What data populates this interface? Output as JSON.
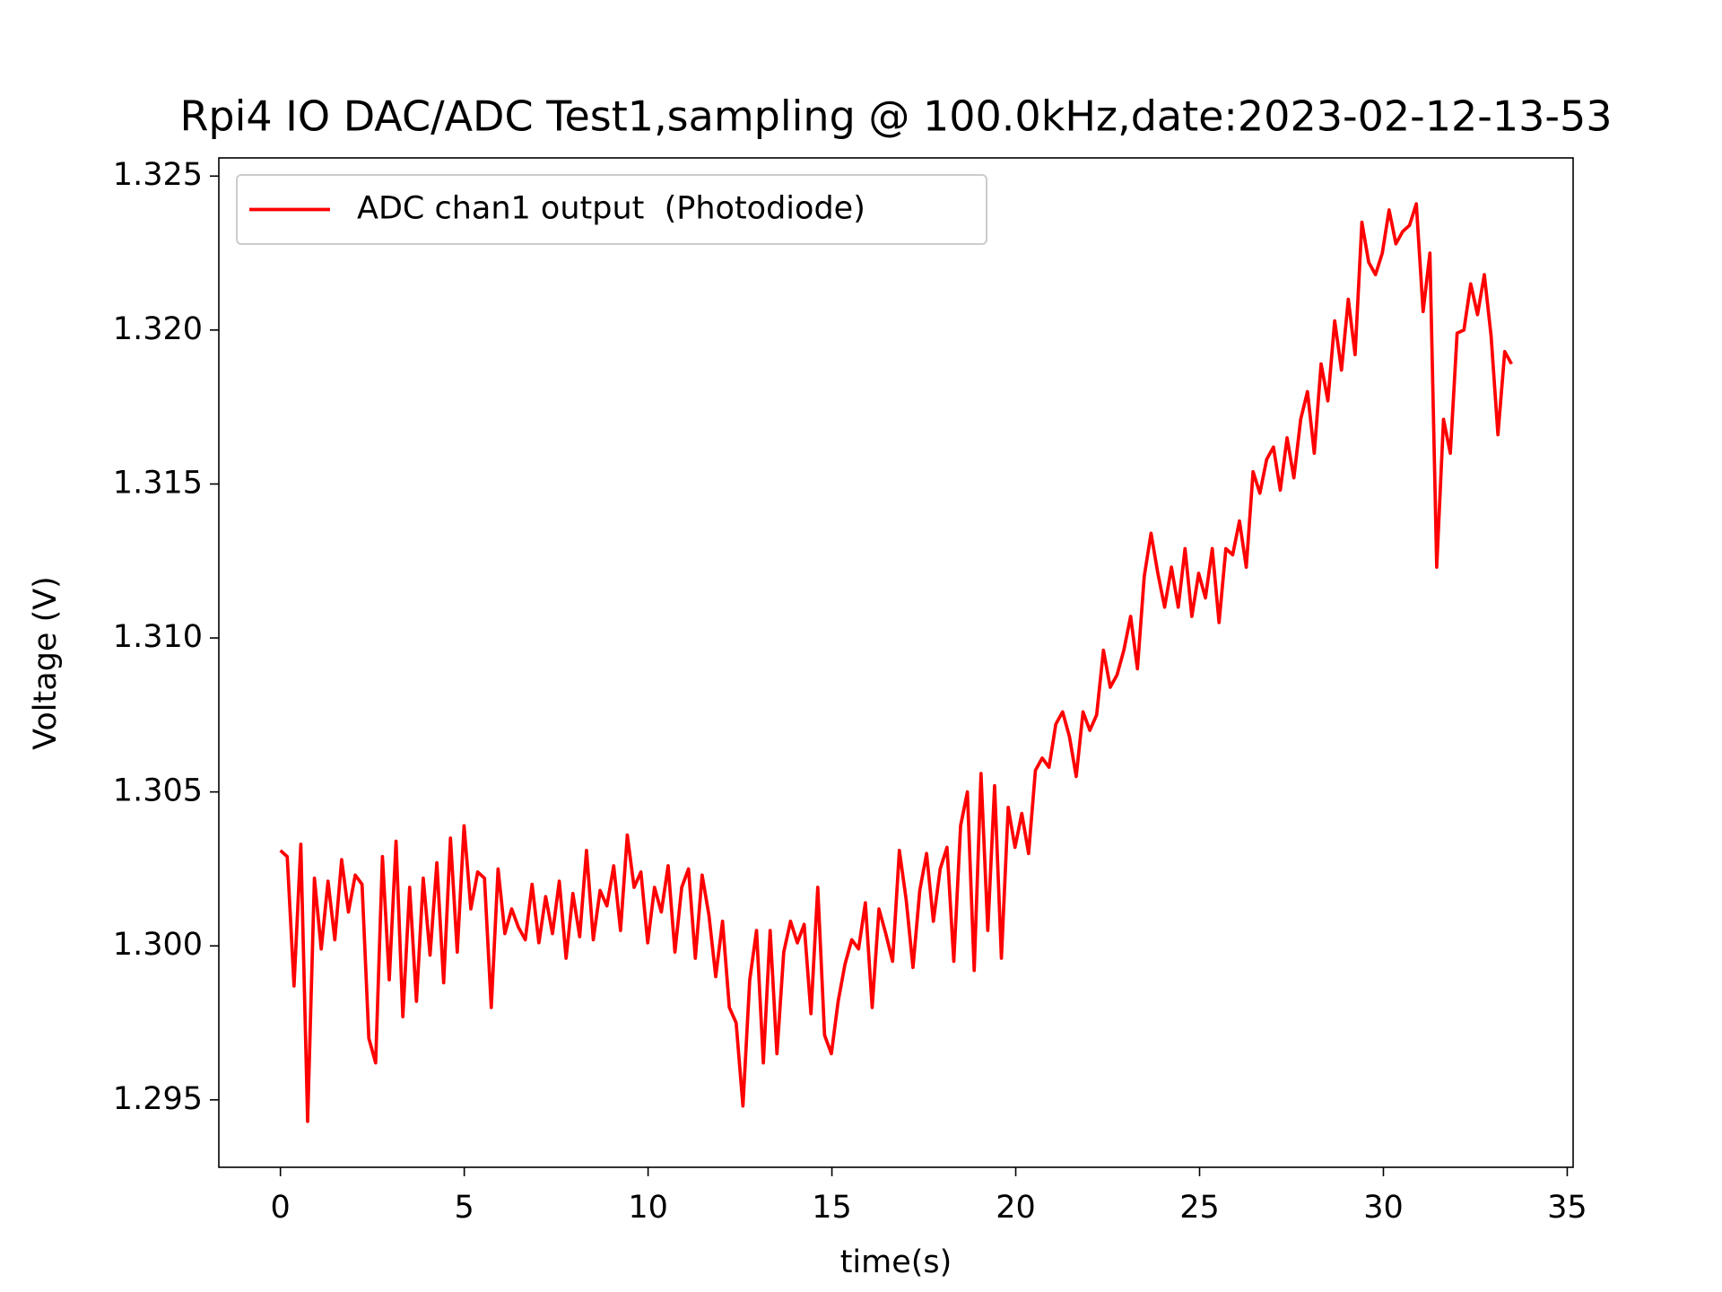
{
  "chart_data": {
    "type": "line",
    "title": "Rpi4 IO DAC/ADC Test1,sampling @ 100.0kHz,date:2023-02-12-13-53",
    "xlabel": "time(s)",
    "ylabel": "Voltage (V)",
    "legend": "upper left",
    "xlim": [
      -1.675,
      35.16
    ],
    "ylim": [
      1.29281,
      1.32559
    ],
    "xticks": [
      0,
      5,
      10,
      15,
      20,
      25,
      30,
      35
    ],
    "yticks": [
      1.295,
      {
        "value": 1.3,
        "label": "1.300"
      },
      1.305,
      {
        "value": 1.31,
        "label": "1.310"
      },
      1.315,
      {
        "value": 1.32,
        "label": "1.320"
      },
      1.325
    ],
    "x": [
      0,
      0.185,
      0.37,
      0.555,
      0.74,
      0.925,
      1.11,
      1.295,
      1.48,
      1.665,
      1.85,
      2.035,
      2.22,
      2.405,
      2.59,
      2.775,
      2.96,
      3.145,
      3.33,
      3.515,
      3.7,
      3.885,
      4.07,
      4.255,
      4.44,
      4.625,
      4.81,
      4.995,
      5.18,
      5.365,
      5.55,
      5.735,
      5.92,
      6.105,
      6.29,
      6.475,
      6.66,
      6.845,
      7.03,
      7.215,
      7.4,
      7.585,
      7.77,
      7.955,
      8.14,
      8.325,
      8.51,
      8.695,
      8.88,
      9.065,
      9.25,
      9.435,
      9.62,
      9.805,
      9.99,
      10.175,
      10.36,
      10.545,
      10.73,
      10.915,
      11.1,
      11.285,
      11.47,
      11.655,
      11.84,
      12.025,
      12.21,
      12.395,
      12.58,
      12.765,
      12.95,
      13.135,
      13.32,
      13.505,
      13.69,
      13.875,
      14.06,
      14.245,
      14.43,
      14.615,
      14.8,
      14.985,
      15.17,
      15.355,
      15.54,
      15.725,
      15.91,
      16.095,
      16.28,
      16.465,
      16.65,
      16.835,
      17.02,
      17.205,
      17.39,
      17.575,
      17.76,
      17.945,
      18.13,
      18.315,
      18.5,
      18.685,
      18.87,
      19.055,
      19.24,
      19.425,
      19.61,
      19.795,
      19.98,
      20.165,
      20.35,
      20.535,
      20.72,
      20.905,
      21.09,
      21.275,
      21.46,
      21.645,
      21.83,
      22.015,
      22.2,
      22.385,
      22.57,
      22.755,
      22.94,
      23.125,
      23.31,
      23.495,
      23.68,
      23.865,
      24.05,
      24.235,
      24.42,
      24.605,
      24.79,
      24.975,
      25.16,
      25.345,
      25.53,
      25.715,
      25.9,
      26.085,
      26.27,
      26.455,
      26.64,
      26.825,
      27.01,
      27.195,
      27.38,
      27.565,
      27.75,
      27.935,
      28.12,
      28.305,
      28.49,
      28.675,
      28.86,
      29.045,
      29.23,
      29.415,
      29.6,
      29.785,
      29.97,
      30.155,
      30.34,
      30.525,
      30.71,
      30.895,
      31.08,
      31.265,
      31.45,
      31.635,
      31.82,
      32.005,
      32.19,
      32.375,
      32.56,
      32.745,
      32.93,
      33.115,
      33.3,
      33.485
    ],
    "series": [
      {
        "name": "ADC chan1 output  (Photodiode)",
        "color": "#ff0000",
        "values": [
          1.3031,
          1.3029,
          1.2987,
          1.3033,
          1.2943,
          1.3022,
          1.2999,
          1.3021,
          1.3002,
          1.3028,
          1.3011,
          1.3023,
          1.302,
          1.297,
          1.2962,
          1.3029,
          1.2989,
          1.3034,
          1.2977,
          1.3019,
          1.2982,
          1.3022,
          1.2997,
          1.3027,
          1.2988,
          1.3035,
          1.2998,
          1.3039,
          1.3012,
          1.3024,
          1.3022,
          1.298,
          1.3025,
          1.3004,
          1.3012,
          1.3006,
          1.3002,
          1.302,
          1.3001,
          1.3016,
          1.3004,
          1.3021,
          1.2996,
          1.3017,
          1.3003,
          1.3031,
          1.3002,
          1.3018,
          1.3013,
          1.3026,
          1.3005,
          1.3036,
          1.3019,
          1.3024,
          1.3001,
          1.3019,
          1.3011,
          1.3026,
          1.2998,
          1.3019,
          1.3025,
          1.2996,
          1.3023,
          1.301,
          1.299,
          1.3008,
          1.298,
          1.2975,
          1.2948,
          1.2989,
          1.3005,
          1.2962,
          1.3005,
          1.2965,
          1.2998,
          1.3008,
          1.3001,
          1.3007,
          1.2978,
          1.3019,
          1.2971,
          1.2965,
          1.2982,
          1.2994,
          1.3002,
          1.2999,
          1.3014,
          1.298,
          1.3012,
          1.3004,
          1.2995,
          1.3031,
          1.3015,
          1.2993,
          1.3018,
          1.303,
          1.3008,
          1.3025,
          1.3032,
          1.2995,
          1.3039,
          1.305,
          1.2992,
          1.3056,
          1.3005,
          1.3052,
          1.2996,
          1.3045,
          1.3032,
          1.3043,
          1.303,
          1.3057,
          1.3061,
          1.3058,
          1.3072,
          1.3076,
          1.3068,
          1.3055,
          1.3076,
          1.307,
          1.3075,
          1.3096,
          1.3084,
          1.3088,
          1.3096,
          1.3107,
          1.309,
          1.312,
          1.3134,
          1.3121,
          1.311,
          1.3123,
          1.311,
          1.3129,
          1.3107,
          1.3121,
          1.3113,
          1.3129,
          1.3105,
          1.3129,
          1.3127,
          1.3138,
          1.3123,
          1.3154,
          1.3147,
          1.3158,
          1.3162,
          1.3148,
          1.3165,
          1.3152,
          1.3171,
          1.318,
          1.316,
          1.3189,
          1.3177,
          1.3203,
          1.3187,
          1.321,
          1.3192,
          1.3235,
          1.3222,
          1.3218,
          1.3225,
          1.3239,
          1.3228,
          1.3232,
          1.3234,
          1.3241,
          1.3206,
          1.3225,
          1.3123,
          1.3171,
          1.316,
          1.3199,
          1.32,
          1.3215,
          1.3205,
          1.3218,
          1.3198,
          1.3166,
          1.3193,
          1.3189
        ]
      }
    ]
  }
}
